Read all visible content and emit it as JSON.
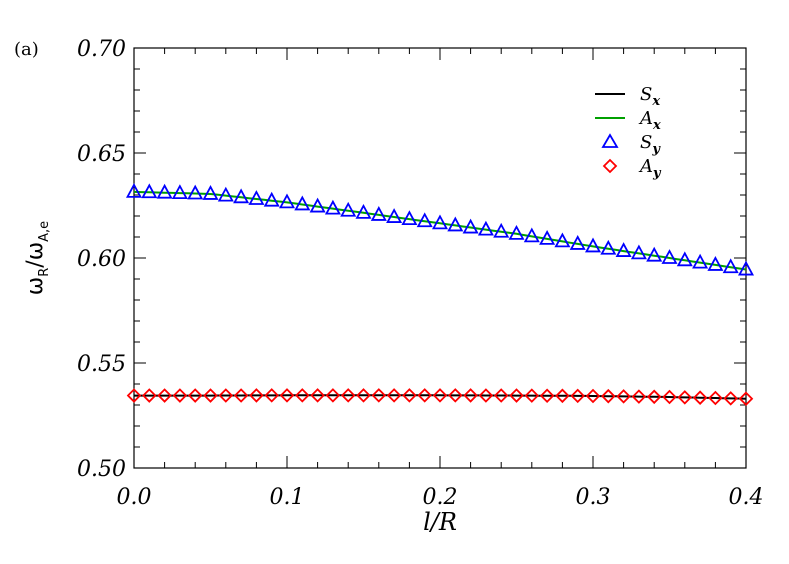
{
  "panel_label": "(a)",
  "chart_data": {
    "type": "line",
    "xlabel": "l/R",
    "ylabel": {
      "main": "ω",
      "sub_num": "R",
      "sep": "/",
      "main2": "ω",
      "sub_den": "A,e"
    },
    "xlim": [
      0.0,
      0.4
    ],
    "ylim": [
      0.5,
      0.7
    ],
    "x_ticks": [
      "0.0",
      "0.1",
      "0.2",
      "0.3",
      "0.4"
    ],
    "y_ticks": [
      "0.50",
      "0.55",
      "0.60",
      "0.65",
      "0.70"
    ],
    "x_tick_values": [
      0.0,
      0.1,
      0.2,
      0.3,
      0.4
    ],
    "y_tick_values": [
      0.5,
      0.55,
      0.6,
      0.65,
      0.7
    ],
    "legend_position": "top-right",
    "series": [
      {
        "name": "S",
        "sub": "x",
        "style": "line",
        "color": "#000000",
        "x": [
          0.0,
          0.05,
          0.1,
          0.15,
          0.2,
          0.25,
          0.3,
          0.35,
          0.4
        ],
        "y": [
          0.5345,
          0.5345,
          0.5346,
          0.5346,
          0.5346,
          0.5345,
          0.5343,
          0.5338,
          0.533
        ]
      },
      {
        "name": "A",
        "sub": "x",
        "style": "line",
        "color": "#00a000",
        "x": [
          0.0,
          0.05,
          0.1,
          0.15,
          0.2,
          0.25,
          0.3,
          0.35,
          0.4
        ],
        "y": [
          0.6315,
          0.6305,
          0.6265,
          0.6215,
          0.6165,
          0.6115,
          0.6055,
          0.6,
          0.5945
        ]
      },
      {
        "name": "S",
        "sub": "y",
        "style": "triangle",
        "color": "#0000ff",
        "x_start": 0.0,
        "x_step": 0.01,
        "count": 41,
        "anchors_x": [
          0.0,
          0.05,
          0.1,
          0.15,
          0.2,
          0.25,
          0.3,
          0.35,
          0.4
        ],
        "anchors_y": [
          0.6315,
          0.6305,
          0.6265,
          0.6215,
          0.6165,
          0.6115,
          0.6055,
          0.6,
          0.5945
        ]
      },
      {
        "name": "A",
        "sub": "y",
        "style": "diamond",
        "color": "#ff0000",
        "x_start": 0.0,
        "x_step": 0.01,
        "count": 41,
        "anchors_x": [
          0.0,
          0.05,
          0.1,
          0.15,
          0.2,
          0.25,
          0.3,
          0.35,
          0.4
        ],
        "anchors_y": [
          0.5345,
          0.5345,
          0.5346,
          0.5346,
          0.5346,
          0.5345,
          0.5343,
          0.5338,
          0.533
        ]
      }
    ]
  }
}
